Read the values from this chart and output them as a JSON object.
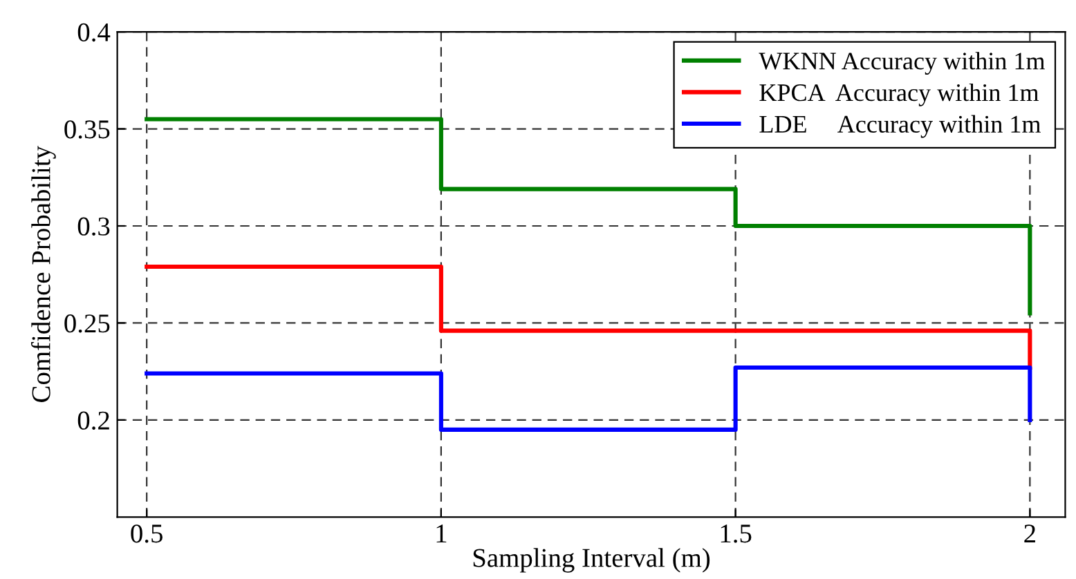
{
  "chart_data": {
    "type": "line",
    "xlabel": "Sampling Interval (m)",
    "ylabel": "Comfidence Probability",
    "xlim": [
      0.45,
      2.06
    ],
    "xticks": [
      0.5,
      1,
      1.5,
      2
    ],
    "ylim": [
      0.15,
      0.4
    ],
    "yticks": [
      0.2,
      0.25,
      0.3,
      0.35,
      0.4
    ],
    "grid": true,
    "legend": "top right",
    "line_style": "solid",
    "marker": "none",
    "series": [
      {
        "name": "WKNN Accuracy within 1m",
        "color": "#008000",
        "x": [
          0.5,
          1,
          1,
          1.5,
          1.5,
          2,
          2
        ],
        "values": [
          0.355,
          0.355,
          0.319,
          0.319,
          0.3,
          0.3,
          0.255
        ]
      },
      {
        "name": "KPCA  Accuracy within 1m",
        "color": "#ff0000",
        "x": [
          0.5,
          1,
          1,
          2,
          2
        ],
        "values": [
          0.279,
          0.279,
          0.246,
          0.246,
          0.227
        ]
      },
      {
        "name": "LDE     Accuracy within 1m",
        "color": "#0000ff",
        "x": [
          0.5,
          1,
          1,
          1.5,
          1.5,
          2,
          2
        ],
        "values": [
          0.224,
          0.224,
          0.195,
          0.195,
          0.227,
          0.227,
          0.2
        ]
      }
    ]
  }
}
